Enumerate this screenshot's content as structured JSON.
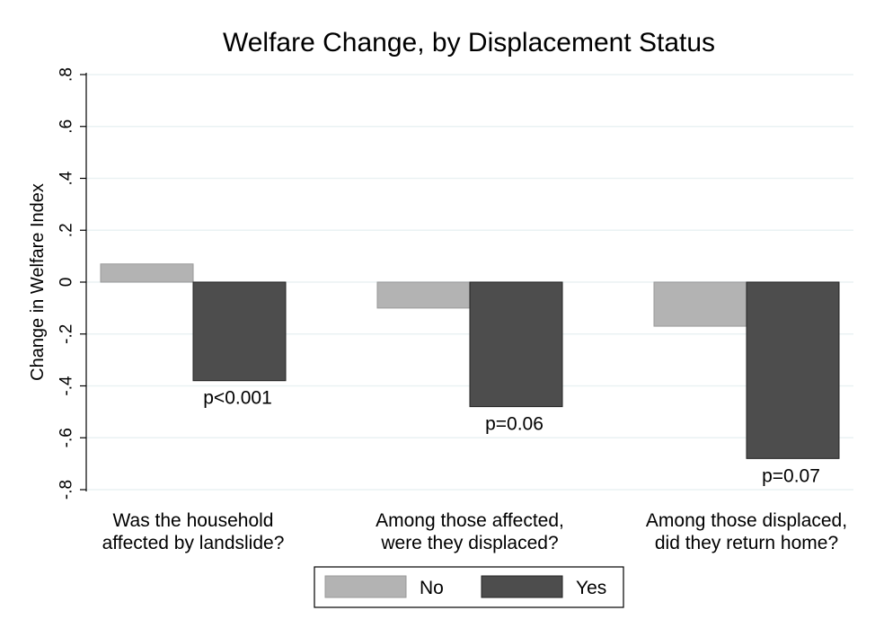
{
  "chart_data": {
    "type": "bar",
    "title": "Welfare Change, by Displacement Status",
    "xlabel": "",
    "ylabel": "Change in Welfare Index",
    "ylim": [
      -0.8,
      0.8
    ],
    "yticks": [
      ".8",
      ".6",
      ".4",
      ".2",
      "0",
      "-.2",
      "-.4",
      "-.6",
      "-.8"
    ],
    "categories": [
      [
        "Was the household",
        "affected by landslide?"
      ],
      [
        "Among those affected,",
        "were they displaced?"
      ],
      [
        "Among those displaced,",
        "did they return home?"
      ]
    ],
    "series": [
      {
        "name": "No",
        "values": [
          0.07,
          -0.1,
          -0.17
        ]
      },
      {
        "name": "Yes",
        "values": [
          -0.38,
          -0.48,
          -0.68
        ]
      }
    ],
    "annotations": [
      "p<0.001",
      "p=0.06",
      "p=0.07"
    ],
    "grid": true,
    "legend_position": "bottom",
    "colors": {
      "No": "#b3b3b3",
      "Yes": "#4d4d4d",
      "grid": "#eaf2f3",
      "axis": "#000000"
    }
  }
}
